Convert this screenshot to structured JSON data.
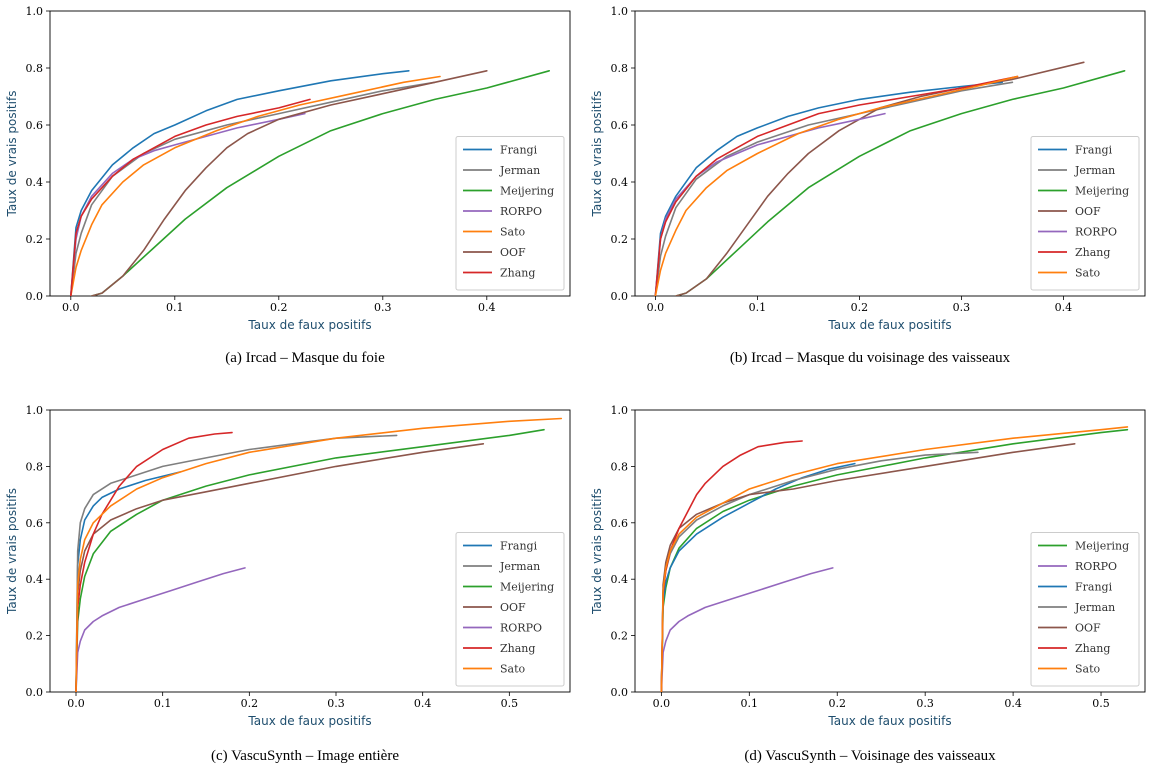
{
  "colors": {
    "Frangi": "#1f77b4",
    "Jerman": "#7f7f7f",
    "Meijering": "#2ca02c",
    "RORPO": "#9467bd",
    "Sato": "#ff7f0e",
    "OOF": "#8c564b",
    "Zhang": "#d62728"
  },
  "chart_data": [
    {
      "type": "line",
      "caption": "(a)  Ircad – Masque du foie",
      "xlabel": "Taux de faux positifs",
      "ylabel": "Taux de vrais positifs",
      "xlim": [
        -0.02,
        0.48
      ],
      "ylim": [
        0,
        1.0
      ],
      "xticks": [
        "0.0",
        "0.1",
        "0.2",
        "0.3",
        "0.4"
      ],
      "xtick_values": [
        0,
        0.1,
        0.2,
        0.3,
        0.4
      ],
      "yticks": [
        "0.0",
        "0.2",
        "0.4",
        "0.6",
        "0.8",
        "1.0"
      ],
      "ytick_values": [
        0,
        0.2,
        0.4,
        0.6,
        0.8,
        1.0
      ],
      "legend": [
        "Frangi",
        "Jerman",
        "Meijering",
        "RORPO",
        "Sato",
        "OOF",
        "Zhang"
      ],
      "legend_position": "lower-right",
      "series": [
        {
          "name": "Frangi",
          "x": [
            0,
            0.005,
            0.01,
            0.02,
            0.04,
            0.06,
            0.08,
            0.1,
            0.13,
            0.16,
            0.2,
            0.25,
            0.3,
            0.325
          ],
          "y": [
            0,
            0.24,
            0.3,
            0.37,
            0.46,
            0.52,
            0.57,
            0.6,
            0.65,
            0.69,
            0.72,
            0.755,
            0.78,
            0.79
          ]
        },
        {
          "name": "Jerman",
          "x": [
            0,
            0.005,
            0.01,
            0.02,
            0.04,
            0.07,
            0.1,
            0.15,
            0.2,
            0.25,
            0.3,
            0.35
          ],
          "y": [
            0,
            0.15,
            0.22,
            0.32,
            0.42,
            0.5,
            0.55,
            0.6,
            0.64,
            0.68,
            0.72,
            0.75
          ]
        },
        {
          "name": "Meijering",
          "x": [
            0.02,
            0.03,
            0.05,
            0.08,
            0.11,
            0.15,
            0.2,
            0.25,
            0.3,
            0.35,
            0.4,
            0.46
          ],
          "y": [
            0,
            0.01,
            0.07,
            0.17,
            0.27,
            0.38,
            0.49,
            0.58,
            0.64,
            0.69,
            0.73,
            0.79
          ]
        },
        {
          "name": "RORPO",
          "x": [
            0,
            0.005,
            0.01,
            0.02,
            0.04,
            0.06,
            0.08,
            0.1,
            0.13,
            0.16,
            0.2,
            0.225
          ],
          "y": [
            0,
            0.2,
            0.28,
            0.35,
            0.43,
            0.48,
            0.51,
            0.53,
            0.56,
            0.59,
            0.62,
            0.64
          ]
        },
        {
          "name": "Sato",
          "x": [
            0,
            0.005,
            0.01,
            0.02,
            0.03,
            0.05,
            0.07,
            0.1,
            0.14,
            0.18,
            0.22,
            0.27,
            0.32,
            0.355
          ],
          "y": [
            0,
            0.1,
            0.16,
            0.25,
            0.32,
            0.4,
            0.46,
            0.52,
            0.58,
            0.63,
            0.67,
            0.71,
            0.75,
            0.77
          ]
        },
        {
          "name": "OOF",
          "x": [
            0.02,
            0.03,
            0.05,
            0.07,
            0.09,
            0.11,
            0.13,
            0.15,
            0.17,
            0.2,
            0.25,
            0.3,
            0.35,
            0.4
          ],
          "y": [
            0,
            0.01,
            0.07,
            0.16,
            0.27,
            0.37,
            0.45,
            0.52,
            0.57,
            0.62,
            0.67,
            0.71,
            0.75,
            0.79
          ]
        },
        {
          "name": "Zhang",
          "x": [
            0,
            0.005,
            0.01,
            0.02,
            0.04,
            0.06,
            0.08,
            0.1,
            0.13,
            0.16,
            0.2,
            0.23
          ],
          "y": [
            0,
            0.22,
            0.28,
            0.34,
            0.42,
            0.48,
            0.52,
            0.56,
            0.6,
            0.63,
            0.66,
            0.69
          ]
        }
      ]
    },
    {
      "type": "line",
      "caption": "(b)  Ircad – Masque du voisinage des vaisseaux",
      "xlabel": "Taux de faux positifs",
      "ylabel": "Taux de vrais positifs",
      "xlim": [
        -0.02,
        0.48
      ],
      "ylim": [
        0,
        1.0
      ],
      "xticks": [
        "0.0",
        "0.1",
        "0.2",
        "0.3",
        "0.4"
      ],
      "xtick_values": [
        0,
        0.1,
        0.2,
        0.3,
        0.4
      ],
      "yticks": [
        "0.0",
        "0.2",
        "0.4",
        "0.6",
        "0.8",
        "1.0"
      ],
      "ytick_values": [
        0,
        0.2,
        0.4,
        0.6,
        0.8,
        1.0
      ],
      "legend": [
        "Frangi",
        "Jerman",
        "Meijering",
        "OOF",
        "RORPO",
        "Zhang",
        "Sato"
      ],
      "legend_position": "lower-right",
      "series": [
        {
          "name": "Frangi",
          "x": [
            0,
            0.005,
            0.01,
            0.02,
            0.04,
            0.06,
            0.08,
            0.1,
            0.13,
            0.16,
            0.2,
            0.25,
            0.3,
            0.34
          ],
          "y": [
            0,
            0.22,
            0.28,
            0.35,
            0.45,
            0.51,
            0.56,
            0.59,
            0.63,
            0.66,
            0.69,
            0.715,
            0.735,
            0.75
          ]
        },
        {
          "name": "Jerman",
          "x": [
            0,
            0.005,
            0.01,
            0.02,
            0.04,
            0.07,
            0.1,
            0.15,
            0.2,
            0.25,
            0.3,
            0.35
          ],
          "y": [
            0,
            0.14,
            0.21,
            0.31,
            0.41,
            0.49,
            0.54,
            0.6,
            0.64,
            0.68,
            0.72,
            0.75
          ]
        },
        {
          "name": "Meijering",
          "x": [
            0.02,
            0.03,
            0.05,
            0.08,
            0.11,
            0.15,
            0.2,
            0.25,
            0.3,
            0.35,
            0.4,
            0.46
          ],
          "y": [
            0,
            0.01,
            0.06,
            0.16,
            0.26,
            0.38,
            0.49,
            0.58,
            0.64,
            0.69,
            0.73,
            0.79
          ]
        },
        {
          "name": "OOF",
          "x": [
            0.02,
            0.03,
            0.05,
            0.07,
            0.09,
            0.11,
            0.13,
            0.15,
            0.18,
            0.22,
            0.26,
            0.3,
            0.35,
            0.42
          ],
          "y": [
            0,
            0.01,
            0.06,
            0.15,
            0.25,
            0.35,
            0.43,
            0.5,
            0.58,
            0.66,
            0.7,
            0.73,
            0.76,
            0.82
          ]
        },
        {
          "name": "RORPO",
          "x": [
            0,
            0.005,
            0.01,
            0.02,
            0.04,
            0.06,
            0.08,
            0.1,
            0.13,
            0.16,
            0.2,
            0.225
          ],
          "y": [
            0,
            0.2,
            0.27,
            0.34,
            0.42,
            0.47,
            0.5,
            0.53,
            0.56,
            0.59,
            0.62,
            0.64
          ]
        },
        {
          "name": "Zhang",
          "x": [
            0,
            0.005,
            0.01,
            0.02,
            0.04,
            0.06,
            0.08,
            0.1,
            0.13,
            0.16,
            0.2,
            0.25,
            0.3,
            0.355
          ],
          "y": [
            0,
            0.2,
            0.26,
            0.33,
            0.42,
            0.48,
            0.52,
            0.56,
            0.6,
            0.64,
            0.67,
            0.7,
            0.73,
            0.77
          ]
        },
        {
          "name": "Sato",
          "x": [
            0,
            0.005,
            0.01,
            0.02,
            0.03,
            0.05,
            0.07,
            0.1,
            0.14,
            0.18,
            0.22,
            0.27,
            0.32,
            0.355
          ],
          "y": [
            0,
            0.09,
            0.15,
            0.23,
            0.3,
            0.38,
            0.44,
            0.5,
            0.57,
            0.62,
            0.66,
            0.7,
            0.74,
            0.77
          ]
        }
      ]
    },
    {
      "type": "line",
      "caption": "(c)  VascuSynth – Image entière",
      "xlabel": "Taux de faux positifs",
      "ylabel": "Taux de vrais positifs",
      "xlim": [
        -0.03,
        0.57
      ],
      "ylim": [
        0,
        1.0
      ],
      "xticks": [
        "0.0",
        "0.1",
        "0.2",
        "0.3",
        "0.4",
        "0.5"
      ],
      "xtick_values": [
        0,
        0.1,
        0.2,
        0.3,
        0.4,
        0.5
      ],
      "yticks": [
        "0.0",
        "0.2",
        "0.4",
        "0.6",
        "0.8",
        "1.0"
      ],
      "ytick_values": [
        0,
        0.2,
        0.4,
        0.6,
        0.8,
        1.0
      ],
      "legend": [
        "Frangi",
        "Jerman",
        "Meijering",
        "OOF",
        "RORPO",
        "Zhang",
        "Sato"
      ],
      "legend_position": "lower-right",
      "series": [
        {
          "name": "Frangi",
          "x": [
            0,
            0.002,
            0.005,
            0.01,
            0.02,
            0.03,
            0.05,
            0.08,
            0.12
          ],
          "y": [
            0,
            0.45,
            0.54,
            0.61,
            0.66,
            0.69,
            0.72,
            0.75,
            0.78
          ]
        },
        {
          "name": "Jerman",
          "x": [
            0,
            0.002,
            0.005,
            0.01,
            0.02,
            0.04,
            0.07,
            0.1,
            0.15,
            0.2,
            0.25,
            0.3,
            0.37
          ],
          "y": [
            0,
            0.5,
            0.6,
            0.65,
            0.7,
            0.74,
            0.77,
            0.8,
            0.83,
            0.86,
            0.88,
            0.9,
            0.91
          ]
        },
        {
          "name": "Meijering",
          "x": [
            0,
            0.002,
            0.005,
            0.01,
            0.02,
            0.04,
            0.07,
            0.1,
            0.15,
            0.2,
            0.3,
            0.4,
            0.5,
            0.54
          ],
          "y": [
            0,
            0.25,
            0.33,
            0.41,
            0.49,
            0.57,
            0.63,
            0.68,
            0.73,
            0.77,
            0.83,
            0.87,
            0.91,
            0.93
          ]
        },
        {
          "name": "OOF",
          "x": [
            0,
            0.002,
            0.005,
            0.01,
            0.02,
            0.04,
            0.07,
            0.1,
            0.15,
            0.2,
            0.3,
            0.4,
            0.47
          ],
          "y": [
            0,
            0.35,
            0.43,
            0.5,
            0.56,
            0.61,
            0.65,
            0.68,
            0.71,
            0.74,
            0.8,
            0.85,
            0.88
          ]
        },
        {
          "name": "RORPO",
          "x": [
            0,
            0.002,
            0.005,
            0.01,
            0.02,
            0.03,
            0.05,
            0.08,
            0.11,
            0.14,
            0.17,
            0.195
          ],
          "y": [
            0,
            0.14,
            0.18,
            0.22,
            0.25,
            0.27,
            0.3,
            0.33,
            0.36,
            0.39,
            0.42,
            0.44
          ]
        },
        {
          "name": "Zhang",
          "x": [
            0,
            0.002,
            0.005,
            0.01,
            0.02,
            0.03,
            0.05,
            0.07,
            0.1,
            0.13,
            0.16,
            0.18
          ],
          "y": [
            0,
            0.3,
            0.38,
            0.46,
            0.56,
            0.63,
            0.73,
            0.8,
            0.86,
            0.9,
            0.915,
            0.92
          ]
        },
        {
          "name": "Sato",
          "x": [
            0,
            0.002,
            0.005,
            0.01,
            0.02,
            0.04,
            0.07,
            0.1,
            0.15,
            0.2,
            0.3,
            0.4,
            0.5,
            0.56
          ],
          "y": [
            0,
            0.38,
            0.47,
            0.54,
            0.6,
            0.66,
            0.72,
            0.76,
            0.81,
            0.85,
            0.9,
            0.935,
            0.96,
            0.97
          ]
        }
      ]
    },
    {
      "type": "line",
      "caption": "(d)  VascuSynth – Voisinage des vaisseaux",
      "xlabel": "Taux de faux positifs",
      "ylabel": "Taux de vrais positifs",
      "xlim": [
        -0.03,
        0.55
      ],
      "ylim": [
        0,
        1.0
      ],
      "xticks": [
        "0.0",
        "0.1",
        "0.2",
        "0.3",
        "0.4",
        "0.5"
      ],
      "xtick_values": [
        0,
        0.1,
        0.2,
        0.3,
        0.4,
        0.5
      ],
      "yticks": [
        "0.0",
        "0.2",
        "0.4",
        "0.6",
        "0.8",
        "1.0"
      ],
      "ytick_values": [
        0,
        0.2,
        0.4,
        0.6,
        0.8,
        1.0
      ],
      "legend": [
        "Meijering",
        "RORPO",
        "Frangi",
        "Jerman",
        "OOF",
        "Zhang",
        "Sato"
      ],
      "legend_position": "lower-right",
      "series": [
        {
          "name": "Meijering",
          "x": [
            0,
            0.002,
            0.005,
            0.01,
            0.02,
            0.04,
            0.07,
            0.1,
            0.15,
            0.2,
            0.3,
            0.4,
            0.5,
            0.53
          ],
          "y": [
            0,
            0.3,
            0.37,
            0.44,
            0.51,
            0.58,
            0.64,
            0.68,
            0.73,
            0.77,
            0.83,
            0.88,
            0.92,
            0.93
          ]
        },
        {
          "name": "RORPO",
          "x": [
            0,
            0.002,
            0.005,
            0.01,
            0.02,
            0.03,
            0.05,
            0.08,
            0.11,
            0.14,
            0.17,
            0.195
          ],
          "y": [
            0,
            0.14,
            0.18,
            0.22,
            0.25,
            0.27,
            0.3,
            0.33,
            0.36,
            0.39,
            0.42,
            0.44
          ]
        },
        {
          "name": "Frangi",
          "x": [
            0,
            0.002,
            0.005,
            0.01,
            0.02,
            0.04,
            0.07,
            0.1,
            0.13,
            0.16,
            0.19,
            0.22
          ],
          "y": [
            0,
            0.32,
            0.39,
            0.44,
            0.5,
            0.56,
            0.62,
            0.67,
            0.72,
            0.76,
            0.79,
            0.81
          ]
        },
        {
          "name": "Jerman",
          "x": [
            0,
            0.002,
            0.005,
            0.01,
            0.02,
            0.04,
            0.07,
            0.1,
            0.15,
            0.2,
            0.25,
            0.3,
            0.36
          ],
          "y": [
            0,
            0.36,
            0.43,
            0.49,
            0.55,
            0.61,
            0.66,
            0.7,
            0.75,
            0.79,
            0.82,
            0.84,
            0.85
          ]
        },
        {
          "name": "OOF",
          "x": [
            0,
            0.002,
            0.005,
            0.01,
            0.02,
            0.04,
            0.07,
            0.1,
            0.15,
            0.2,
            0.3,
            0.4,
            0.47
          ],
          "y": [
            0,
            0.38,
            0.46,
            0.52,
            0.58,
            0.63,
            0.67,
            0.7,
            0.72,
            0.75,
            0.8,
            0.85,
            0.88
          ]
        },
        {
          "name": "Zhang",
          "x": [
            0,
            0.002,
            0.005,
            0.01,
            0.02,
            0.03,
            0.04,
            0.05,
            0.07,
            0.09,
            0.11,
            0.14,
            0.16
          ],
          "y": [
            0,
            0.35,
            0.43,
            0.5,
            0.58,
            0.64,
            0.7,
            0.74,
            0.8,
            0.84,
            0.87,
            0.885,
            0.89
          ]
        },
        {
          "name": "Sato",
          "x": [
            0,
            0.002,
            0.005,
            0.01,
            0.02,
            0.04,
            0.07,
            0.1,
            0.15,
            0.2,
            0.3,
            0.4,
            0.5,
            0.53
          ],
          "y": [
            0,
            0.36,
            0.44,
            0.5,
            0.56,
            0.62,
            0.67,
            0.72,
            0.77,
            0.81,
            0.86,
            0.9,
            0.93,
            0.94
          ]
        }
      ]
    }
  ]
}
